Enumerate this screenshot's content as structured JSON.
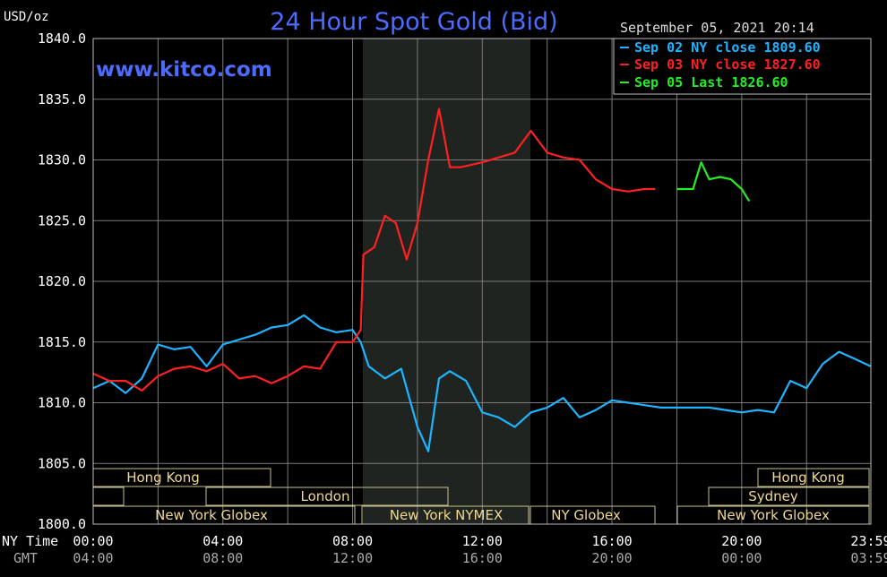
{
  "header": {
    "unit_label": "USD/oz",
    "title": "24 Hour Spot Gold (Bid)",
    "date_time": "September 05, 2021 20:14",
    "watermark": "www.kitco.com"
  },
  "legend": [
    {
      "text": "Sep 02 NY close 1809.60",
      "color": "#1fb4ff"
    },
    {
      "text": "Sep 03 NY close 1827.60",
      "color": "#ff2020"
    },
    {
      "text": "Sep 05 Last 1826.60",
      "color": "#22ee22"
    }
  ],
  "axis": {
    "ny_time_label": "NY Time",
    "gmt_label": "GMT",
    "ny_ticks": [
      "00:00",
      "04:00",
      "08:00",
      "12:00",
      "16:00",
      "20:00",
      "23:59"
    ],
    "gmt_ticks": [
      "04:00",
      "08:00",
      "12:00",
      "16:00",
      "20:00",
      "00:00",
      "03:59"
    ]
  },
  "markets": {
    "row1": [
      "Hong Kong",
      "Hong Kong"
    ],
    "row2": [
      "London",
      "Sydney"
    ],
    "row3": [
      "New York Globex",
      "New York NYMEX",
      "NY Globex",
      "New York Globex"
    ]
  },
  "colors": {
    "sep02": "#1fb4ff",
    "sep03": "#ff2020",
    "sep05": "#22ee22",
    "title": "#4d6bff",
    "grid": "#7a7a7a",
    "market_text": "#f0d890",
    "market_border": "#c9c08a",
    "shade": "#1f2420"
  },
  "chart_data": {
    "type": "line",
    "title": "24 Hour Spot Gold (Bid)",
    "xlabel": "NY Time",
    "ylabel": "USD/oz",
    "ylim": [
      1800,
      1840
    ],
    "yticks": [
      "1800.0",
      "1805.0",
      "1810.0",
      "1815.0",
      "1820.0",
      "1825.0",
      "1830.0",
      "1835.0",
      "1840.0"
    ],
    "xlim": [
      "00:00",
      "23:59"
    ],
    "grid": true,
    "legend_position": "top-right",
    "series": [
      {
        "name": "Sep 02 NY close 1809.60",
        "color": "#1fb4ff",
        "x": [
          "00:00",
          "00:30",
          "01:00",
          "01:30",
          "02:00",
          "02:30",
          "03:00",
          "03:30",
          "04:00",
          "04:30",
          "05:00",
          "05:30",
          "06:00",
          "06:30",
          "07:00",
          "07:30",
          "08:00",
          "08:15",
          "08:30",
          "09:00",
          "09:30",
          "10:00",
          "10:20",
          "10:40",
          "11:00",
          "11:30",
          "12:00",
          "12:30",
          "13:00",
          "13:30",
          "14:00",
          "14:30",
          "15:00",
          "15:30",
          "16:00",
          "16:30",
          "17:00",
          "17:30",
          "18:00",
          "18:30",
          "19:00",
          "19:30",
          "20:00",
          "20:30",
          "21:00",
          "21:30",
          "22:00",
          "22:30",
          "23:00",
          "23:30",
          "23:59"
        ],
        "values": [
          1811.2,
          1811.8,
          1810.8,
          1812.0,
          1814.8,
          1814.4,
          1814.6,
          1813.0,
          1814.8,
          1815.2,
          1815.6,
          1816.2,
          1816.4,
          1817.2,
          1816.2,
          1815.8,
          1816.0,
          1815.0,
          1813.0,
          1812.0,
          1812.8,
          1808.0,
          1806.0,
          1812.0,
          1812.6,
          1811.8,
          1809.2,
          1808.8,
          1808.0,
          1809.2,
          1809.6,
          1810.4,
          1808.8,
          1809.4,
          1810.2,
          1810.0,
          1809.8,
          1809.6,
          1809.6,
          1809.6,
          1809.6,
          1809.4,
          1809.2,
          1809.4,
          1809.2,
          1811.8,
          1811.2,
          1813.2,
          1814.2,
          1813.6,
          1813.0
        ]
      },
      {
        "name": "Sep 03 NY close 1827.60",
        "color": "#ff2020",
        "x": [
          "00:00",
          "00:30",
          "01:00",
          "01:30",
          "02:00",
          "02:30",
          "03:00",
          "03:30",
          "04:00",
          "04:30",
          "05:00",
          "05:30",
          "06:00",
          "06:30",
          "07:00",
          "07:30",
          "08:00",
          "08:15",
          "08:20",
          "08:40",
          "09:00",
          "09:20",
          "09:40",
          "10:00",
          "10:20",
          "10:40",
          "11:00",
          "11:20",
          "11:40",
          "12:00",
          "12:30",
          "13:00",
          "13:30",
          "14:00",
          "14:30",
          "15:00",
          "15:30",
          "16:00",
          "16:30",
          "17:00",
          "17:20"
        ],
        "values": [
          1812.4,
          1811.8,
          1811.8,
          1811.0,
          1812.2,
          1812.8,
          1813.0,
          1812.6,
          1813.2,
          1812.0,
          1812.2,
          1811.6,
          1812.2,
          1813.0,
          1812.8,
          1815.0,
          1815.0,
          1816.0,
          1822.2,
          1822.8,
          1825.4,
          1824.8,
          1821.8,
          1824.8,
          1830.0,
          1834.2,
          1829.4,
          1829.4,
          1829.6,
          1829.8,
          1830.2,
          1830.6,
          1832.4,
          1830.6,
          1830.2,
          1830.0,
          1828.4,
          1827.6,
          1827.4,
          1827.6,
          1827.6
        ]
      },
      {
        "name": "Sep 05 Last 1826.60",
        "color": "#22ee22",
        "x": [
          "18:00",
          "18:30",
          "18:45",
          "19:00",
          "19:20",
          "19:40",
          "20:00",
          "20:14"
        ],
        "values": [
          1827.6,
          1827.6,
          1829.8,
          1828.4,
          1828.6,
          1828.4,
          1827.6,
          1826.6
        ]
      }
    ]
  }
}
